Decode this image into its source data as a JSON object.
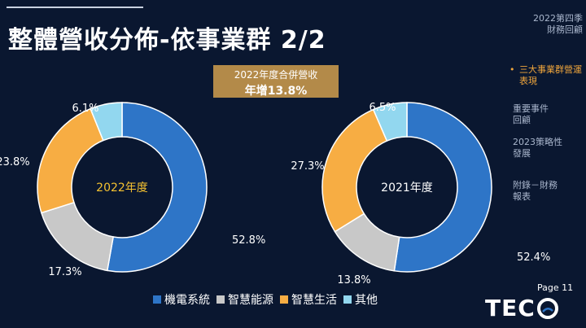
{
  "header": {
    "title": "整體營收分佈-依事業群 2/2"
  },
  "summary": {
    "line1": "2022年度合併營收",
    "line2": "年增13.8%"
  },
  "colors": {
    "background": "#0a1730",
    "series": [
      "#2e75c7",
      "#c8c8c8",
      "#f7ad43",
      "#92d7ef"
    ],
    "accent": "#b38a49",
    "center_2022": "#f5c230"
  },
  "chart_data": [
    {
      "type": "pie",
      "title": "2022年度",
      "categories": [
        "機電系統",
        "智慧能源",
        "智慧生活",
        "其他"
      ],
      "values": [
        52.8,
        17.3,
        23.8,
        6.1
      ],
      "labels": [
        "52.8%",
        "17.3%",
        "23.8%",
        "6.1%"
      ],
      "donut": true
    },
    {
      "type": "pie",
      "title": "2021年度",
      "categories": [
        "機電系統",
        "智慧能源",
        "智慧生活",
        "其他"
      ],
      "values": [
        52.4,
        13.8,
        27.3,
        6.5
      ],
      "labels": [
        "52.4%",
        "13.8%",
        "27.3%",
        "6.5%"
      ],
      "donut": true
    }
  ],
  "legend": {
    "items": [
      "機電系統",
      "智慧能源",
      "智慧生活",
      "其他"
    ],
    "marker": "■"
  },
  "sidebar": {
    "items": [
      {
        "line1": "2022第四季",
        "line2": "財務回顧"
      },
      {
        "line1": "三大事業群營運",
        "line2": "表現"
      },
      {
        "line1": "重要事件",
        "line2": "回顧"
      },
      {
        "line1": "2023策略性",
        "line2": "發展"
      },
      {
        "line1": "附錄－財務",
        "line2": "報表"
      }
    ],
    "active_marker": "•"
  },
  "footer": {
    "page": "Page 11",
    "logo": "TEC"
  }
}
